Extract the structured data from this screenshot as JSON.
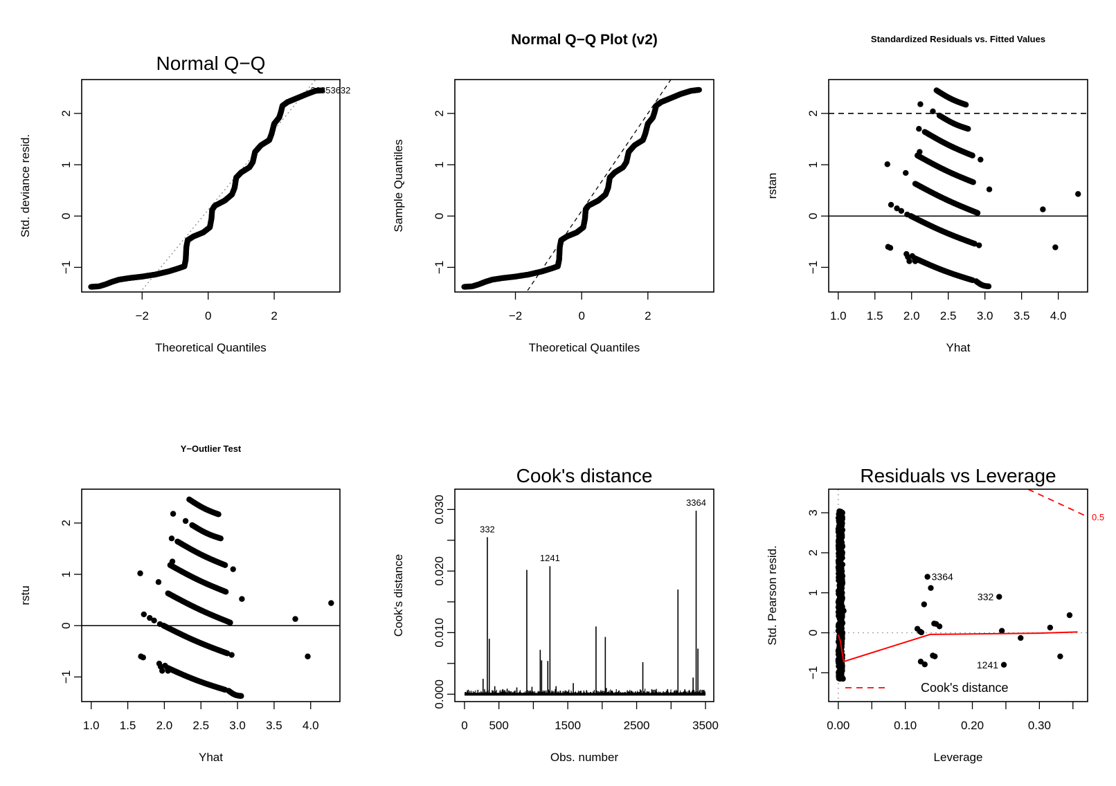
{
  "figure": {
    "layout": "2 rows x 3 columns",
    "background": "#ffffff",
    "accent_red": "#ff0000"
  },
  "chart_data": [
    {
      "id": "qq1",
      "type": "scatter",
      "title": "Normal Q−Q",
      "title_style": "large-plain",
      "xlabel": "Theoretical Quantiles",
      "ylabel": "Std. deviance resid.",
      "xlim": [
        -3.83,
        3.99
      ],
      "ylim": [
        -1.48,
        2.66
      ],
      "xticks": [
        -2,
        0,
        2
      ],
      "xtick_labels": [
        "−2",
        "0",
        "2"
      ],
      "yticks": [
        -1,
        0,
        1,
        2
      ],
      "ytick_labels": [
        "−1",
        "0",
        "1",
        "2"
      ],
      "reference_line": {
        "style": "dotted-gray",
        "intercept": 0.12,
        "slope": 0.78
      },
      "curve_points": [
        [
          -3.55,
          -1.38
        ],
        [
          -3.3,
          -1.37
        ],
        [
          -3.1,
          -1.33
        ],
        [
          -2.9,
          -1.28
        ],
        [
          -2.7,
          -1.24
        ],
        [
          -2.4,
          -1.21
        ],
        [
          -2.0,
          -1.18
        ],
        [
          -1.6,
          -1.14
        ],
        [
          -1.2,
          -1.08
        ],
        [
          -0.9,
          -1.02
        ],
        [
          -0.72,
          -0.98
        ],
        [
          -0.68,
          -0.85
        ],
        [
          -0.66,
          -0.6
        ],
        [
          -0.62,
          -0.47
        ],
        [
          -0.45,
          -0.4
        ],
        [
          -0.15,
          -0.32
        ],
        [
          0.05,
          -0.22
        ],
        [
          0.1,
          -0.05
        ],
        [
          0.12,
          0.12
        ],
        [
          0.2,
          0.2
        ],
        [
          0.5,
          0.3
        ],
        [
          0.72,
          0.42
        ],
        [
          0.8,
          0.55
        ],
        [
          0.85,
          0.75
        ],
        [
          1.0,
          0.85
        ],
        [
          1.25,
          0.95
        ],
        [
          1.35,
          1.05
        ],
        [
          1.42,
          1.25
        ],
        [
          1.6,
          1.38
        ],
        [
          1.85,
          1.48
        ],
        [
          1.92,
          1.6
        ],
        [
          2.0,
          1.8
        ],
        [
          2.15,
          1.92
        ],
        [
          2.2,
          2.02
        ],
        [
          2.25,
          2.15
        ],
        [
          2.4,
          2.22
        ],
        [
          2.7,
          2.3
        ],
        [
          3.0,
          2.38
        ],
        [
          3.25,
          2.44
        ],
        [
          3.45,
          2.45
        ]
      ],
      "annotations": [
        {
          "text": "26853632",
          "x": 3.1,
          "y": 2.46,
          "note": "overlapping labels 2685 / 3632"
        }
      ]
    },
    {
      "id": "qq2",
      "type": "scatter",
      "title": "Normal Q−Q Plot (v2)",
      "title_style": "medium-bold",
      "xlabel": "Theoretical Quantiles",
      "ylabel": "Sample Quantiles",
      "xlim": [
        -3.83,
        3.99
      ],
      "ylim": [
        -1.48,
        2.66
      ],
      "xticks": [
        -2,
        0,
        2
      ],
      "xtick_labels": [
        "−2",
        "0",
        "2"
      ],
      "yticks": [
        -1,
        0,
        1,
        2
      ],
      "ytick_labels": [
        "−1",
        "0",
        "1",
        "2"
      ],
      "reference_line": {
        "style": "dashed-black",
        "intercept": 0.1,
        "slope": 0.95
      },
      "curve_points": [
        [
          -3.55,
          -1.38
        ],
        [
          -3.3,
          -1.37
        ],
        [
          -3.1,
          -1.33
        ],
        [
          -2.9,
          -1.28
        ],
        [
          -2.7,
          -1.24
        ],
        [
          -2.4,
          -1.21
        ],
        [
          -2.0,
          -1.18
        ],
        [
          -1.6,
          -1.14
        ],
        [
          -1.2,
          -1.08
        ],
        [
          -0.9,
          -1.02
        ],
        [
          -0.72,
          -0.98
        ],
        [
          -0.68,
          -0.85
        ],
        [
          -0.66,
          -0.6
        ],
        [
          -0.62,
          -0.47
        ],
        [
          -0.45,
          -0.4
        ],
        [
          -0.15,
          -0.32
        ],
        [
          0.05,
          -0.22
        ],
        [
          0.1,
          -0.05
        ],
        [
          0.12,
          0.12
        ],
        [
          0.2,
          0.2
        ],
        [
          0.5,
          0.3
        ],
        [
          0.72,
          0.42
        ],
        [
          0.8,
          0.55
        ],
        [
          0.85,
          0.75
        ],
        [
          1.0,
          0.85
        ],
        [
          1.25,
          0.95
        ],
        [
          1.35,
          1.05
        ],
        [
          1.42,
          1.25
        ],
        [
          1.6,
          1.38
        ],
        [
          1.85,
          1.48
        ],
        [
          1.92,
          1.6
        ],
        [
          2.0,
          1.8
        ],
        [
          2.15,
          1.92
        ],
        [
          2.2,
          2.02
        ],
        [
          2.25,
          2.15
        ],
        [
          2.4,
          2.22
        ],
        [
          2.7,
          2.3
        ],
        [
          3.0,
          2.38
        ],
        [
          3.3,
          2.44
        ],
        [
          3.55,
          2.46
        ]
      ],
      "annotations": []
    },
    {
      "id": "rstan",
      "type": "scatter",
      "title": "Standardized Residuals vs. Fitted Values",
      "title_style": "small-bold",
      "xlabel": "Yhat",
      "ylabel": "rstan",
      "xlim": [
        0.87,
        4.4
      ],
      "ylim": [
        -1.48,
        2.66
      ],
      "xticks": [
        1.0,
        1.5,
        2.0,
        2.5,
        3.0,
        3.5,
        4.0
      ],
      "xtick_labels": [
        "1.0",
        "1.5",
        "2.0",
        "2.5",
        "3.0",
        "3.5",
        "4.0"
      ],
      "yticks": [
        -1,
        0,
        1,
        2
      ],
      "ytick_labels": [
        "−1",
        "0",
        "1",
        "2"
      ],
      "hlines": [
        {
          "y": 0,
          "style": "solid"
        },
        {
          "y": 2,
          "style": "dashed"
        }
      ],
      "bands": [
        {
          "from": [
            2.34,
            2.45
          ],
          "to": [
            2.74,
            2.17
          ]
        },
        {
          "from": [
            2.38,
            1.96
          ],
          "to": [
            2.77,
            1.7
          ]
        },
        {
          "from": [
            2.18,
            1.64
          ],
          "to": [
            2.83,
            1.18
          ]
        },
        {
          "from": [
            2.08,
            1.18
          ],
          "to": [
            2.84,
            0.66
          ]
        },
        {
          "from": [
            2.05,
            0.63
          ],
          "to": [
            2.9,
            0.06
          ]
        },
        {
          "from": [
            1.99,
            0.0
          ],
          "to": [
            2.86,
            -0.54
          ]
        },
        {
          "from": [
            2.04,
            -0.82
          ],
          "to": [
            2.83,
            -1.25
          ]
        },
        {
          "from": [
            2.88,
            -1.27
          ],
          "to": [
            3.05,
            -1.37
          ]
        }
      ],
      "isolated_points": [
        [
          2.12,
          2.18
        ],
        [
          2.29,
          2.04
        ],
        [
          2.1,
          1.7
        ],
        [
          2.11,
          1.25
        ],
        [
          2.94,
          1.1
        ],
        [
          1.67,
          1.01
        ],
        [
          1.92,
          0.84
        ],
        [
          3.06,
          0.52
        ],
        [
          1.72,
          0.22
        ],
        [
          1.8,
          0.15
        ],
        [
          1.86,
          0.1
        ],
        [
          1.94,
          0.03
        ],
        [
          3.79,
          0.13
        ],
        [
          4.27,
          0.43
        ],
        [
          1.68,
          -0.6
        ],
        [
          1.71,
          -0.62
        ],
        [
          2.92,
          -0.57
        ],
        [
          3.96,
          -0.61
        ],
        [
          1.93,
          -0.74
        ],
        [
          1.95,
          -0.8
        ],
        [
          1.97,
          -0.88
        ],
        [
          2.01,
          -0.78
        ],
        [
          2.05,
          -0.88
        ]
      ]
    },
    {
      "id": "rstu",
      "type": "scatter",
      "title": "Y−Outlier Test",
      "title_style": "small-bold",
      "xlabel": "Yhat",
      "ylabel": "rstu",
      "xlim": [
        0.87,
        4.4
      ],
      "ylim": [
        -1.48,
        2.66
      ],
      "xticks": [
        1.0,
        1.5,
        2.0,
        2.5,
        3.0,
        3.5,
        4.0
      ],
      "xtick_labels": [
        "1.0",
        "1.5",
        "2.0",
        "2.5",
        "3.0",
        "3.5",
        "4.0"
      ],
      "yticks": [
        -1,
        0,
        1,
        2
      ],
      "ytick_labels": [
        "−1",
        "0",
        "1",
        "2"
      ],
      "hlines": [
        {
          "y": 0,
          "style": "solid"
        }
      ],
      "bands": [
        {
          "from": [
            2.34,
            2.46
          ],
          "to": [
            2.74,
            2.17
          ]
        },
        {
          "from": [
            2.38,
            1.96
          ],
          "to": [
            2.77,
            1.7
          ]
        },
        {
          "from": [
            2.18,
            1.64
          ],
          "to": [
            2.83,
            1.18
          ]
        },
        {
          "from": [
            2.08,
            1.18
          ],
          "to": [
            2.84,
            0.66
          ]
        },
        {
          "from": [
            2.05,
            0.63
          ],
          "to": [
            2.9,
            0.06
          ]
        },
        {
          "from": [
            1.99,
            0.0
          ],
          "to": [
            2.86,
            -0.54
          ]
        },
        {
          "from": [
            2.04,
            -0.82
          ],
          "to": [
            2.83,
            -1.25
          ]
        },
        {
          "from": [
            2.88,
            -1.27
          ],
          "to": [
            3.05,
            -1.37
          ]
        }
      ],
      "isolated_points": [
        [
          2.12,
          2.18
        ],
        [
          2.29,
          2.04
        ],
        [
          2.1,
          1.7
        ],
        [
          2.11,
          1.25
        ],
        [
          2.94,
          1.1
        ],
        [
          1.67,
          1.02
        ],
        [
          1.92,
          0.85
        ],
        [
          3.06,
          0.52
        ],
        [
          1.72,
          0.22
        ],
        [
          1.8,
          0.15
        ],
        [
          1.86,
          0.1
        ],
        [
          1.94,
          0.03
        ],
        [
          3.79,
          0.13
        ],
        [
          4.28,
          0.44
        ],
        [
          1.68,
          -0.6
        ],
        [
          1.71,
          -0.62
        ],
        [
          2.92,
          -0.57
        ],
        [
          3.96,
          -0.6
        ],
        [
          1.93,
          -0.74
        ],
        [
          1.95,
          -0.8
        ],
        [
          1.97,
          -0.88
        ],
        [
          2.01,
          -0.78
        ],
        [
          2.05,
          -0.88
        ]
      ]
    },
    {
      "id": "cooks",
      "type": "bar",
      "title": "Cook's distance",
      "title_style": "large-plain",
      "xlabel": "Obs. number",
      "ylabel": "Cook's distance",
      "xlim": [
        -140,
        3620
      ],
      "ylim": [
        -0.0012,
        0.0333
      ],
      "xticks": [
        0,
        500,
        1000,
        1500,
        2000,
        2500,
        3000,
        3500
      ],
      "xtick_labels": [
        "0",
        "500",
        "",
        "1500",
        "",
        "2500",
        "",
        "3500"
      ],
      "yticks": [
        0.0,
        0.005,
        0.01,
        0.015,
        0.02,
        0.025,
        0.03
      ],
      "ytick_labels": [
        "0.000",
        "",
        "0.010",
        "",
        "0.020",
        "",
        "0.030"
      ],
      "spikes": [
        [
          332,
          0.0255
        ],
        [
          360,
          0.009
        ],
        [
          270,
          0.0025
        ],
        [
          905,
          0.0202
        ],
        [
          1100,
          0.0072
        ],
        [
          1120,
          0.0055
        ],
        [
          1210,
          0.0054
        ],
        [
          1241,
          0.0208
        ],
        [
          1580,
          0.0018
        ],
        [
          1910,
          0.011
        ],
        [
          2045,
          0.0093
        ],
        [
          2590,
          0.0052
        ],
        [
          3100,
          0.017
        ],
        [
          3320,
          0.0027
        ],
        [
          3364,
          0.0298
        ],
        [
          3390,
          0.0074
        ],
        [
          440,
          0.0013
        ],
        [
          620,
          0.0009
        ],
        [
          760,
          0.0011
        ],
        [
          980,
          0.0012
        ],
        [
          1330,
          0.0013
        ],
        [
          2060,
          0.001
        ],
        [
          2720,
          0.0008
        ],
        [
          2950,
          0.0008
        ],
        [
          3200,
          0.0008
        ]
      ],
      "baseline_noise_max": 0.0009,
      "n_obs": 3500,
      "annotations": [
        {
          "text": "332",
          "x": 332,
          "y": 0.0255
        },
        {
          "text": "1241",
          "x": 1241,
          "y": 0.0208
        },
        {
          "text": "3364",
          "x": 3364,
          "y": 0.0298
        }
      ]
    },
    {
      "id": "leverage",
      "type": "scatter",
      "title": "Residuals vs Leverage",
      "title_style": "large-plain",
      "xlabel": "Leverage",
      "ylabel": "Std. Pearson resid.",
      "xlim": [
        -0.0143,
        0.3719
      ],
      "ylim": [
        -1.72,
        3.59
      ],
      "xticks": [
        0.0,
        0.05,
        0.1,
        0.15,
        0.2,
        0.25,
        0.3,
        0.35
      ],
      "xtick_labels": [
        "0.00",
        "",
        "0.10",
        "",
        "0.20",
        "",
        "0.30",
        ""
      ],
      "yticks": [
        -1,
        0,
        1,
        2,
        3
      ],
      "ytick_labels": [
        "−1",
        "0",
        "1",
        "2",
        "3"
      ],
      "low_leverage_cluster": {
        "x_range": [
          0.0,
          0.008
        ],
        "y_range": [
          -1.15,
          3.05
        ]
      },
      "points": [
        [
          0.133,
          1.4
        ],
        [
          0.138,
          1.12
        ],
        [
          0.128,
          0.71
        ],
        [
          0.24,
          0.9
        ],
        [
          0.118,
          0.1
        ],
        [
          0.122,
          0.03
        ],
        [
          0.124,
          0.01
        ],
        [
          0.143,
          0.23
        ],
        [
          0.146,
          0.22
        ],
        [
          0.151,
          0.16
        ],
        [
          0.244,
          0.05
        ],
        [
          0.272,
          -0.13
        ],
        [
          0.316,
          0.13
        ],
        [
          0.345,
          0.44
        ],
        [
          0.123,
          -0.72
        ],
        [
          0.129,
          -0.79
        ],
        [
          0.141,
          -0.57
        ],
        [
          0.144,
          -0.59
        ],
        [
          0.247,
          -0.8
        ],
        [
          0.331,
          -0.59
        ],
        [
          0.008,
          0.55
        ],
        [
          0.007,
          -1.15
        ]
      ],
      "smooth_line": [
        [
          0.0,
          -0.05
        ],
        [
          0.003,
          -0.2
        ],
        [
          0.008,
          -0.72
        ],
        [
          0.137,
          -0.04
        ],
        [
          0.2,
          -0.03
        ],
        [
          0.3,
          -0.01
        ],
        [
          0.357,
          0.02
        ]
      ],
      "cook_contour": {
        "label": "0.5",
        "from": [
          0.283,
          3.59
        ],
        "to": [
          0.3719,
          2.9
        ]
      },
      "annotations": [
        {
          "text": "3364",
          "x": 0.133,
          "y": 1.4,
          "side": "right"
        },
        {
          "text": "332",
          "x": 0.24,
          "y": 0.9,
          "side": "left"
        },
        {
          "text": "1241",
          "x": 0.247,
          "y": -0.8,
          "side": "left"
        }
      ],
      "legend": {
        "label": "Cook's distance",
        "placement": "bottom-left",
        "style": "red-dashed"
      }
    }
  ]
}
